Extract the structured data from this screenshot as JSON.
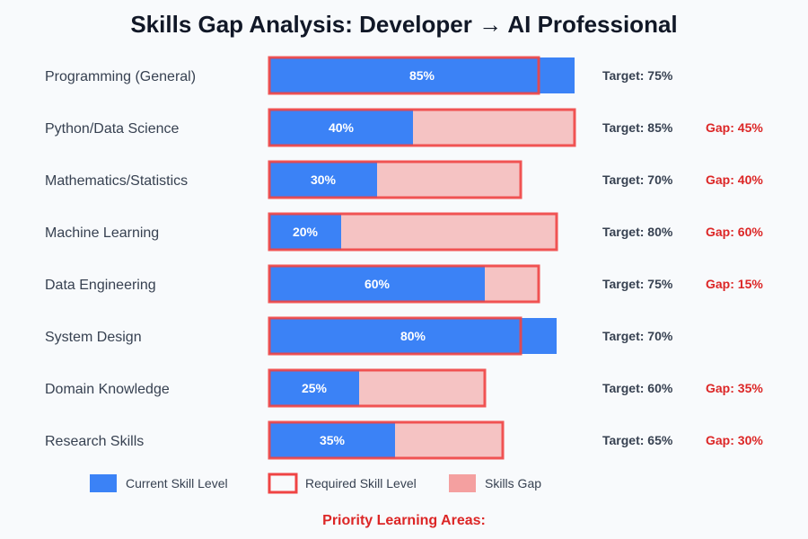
{
  "chart_data": {
    "type": "bar",
    "title": "Skills Gap Analysis: Developer → AI Professional",
    "categories": [
      "Programming (General)",
      "Python/Data Science",
      "Mathematics/Statistics",
      "Machine Learning",
      "Data Engineering",
      "System Design",
      "Domain Knowledge",
      "Research Skills"
    ],
    "series": [
      {
        "name": "Current Skill Level",
        "values": [
          85,
          40,
          30,
          20,
          60,
          80,
          25,
          35
        ]
      },
      {
        "name": "Required Skill Level",
        "values": [
          75,
          85,
          70,
          80,
          75,
          70,
          60,
          65
        ]
      },
      {
        "name": "Skills Gap",
        "values": [
          0,
          45,
          40,
          60,
          15,
          0,
          35,
          30
        ]
      }
    ],
    "xlim": [
      0,
      100
    ],
    "value_labels": [
      "85%",
      "40%",
      "30%",
      "20%",
      "60%",
      "80%",
      "25%",
      "35%"
    ],
    "target_labels": [
      "Target: 75%",
      "Target: 85%",
      "Target: 70%",
      "Target: 80%",
      "Target: 75%",
      "Target: 70%",
      "Target: 60%",
      "Target: 65%"
    ],
    "gap_labels": [
      "",
      "Gap: 45%",
      "Gap: 40%",
      "Gap: 60%",
      "Gap: 15%",
      "",
      "Gap: 35%",
      "Gap: 30%"
    ],
    "legend": [
      "Current Skill Level",
      "Required Skill Level",
      "Skills Gap"
    ],
    "footer": "Priority Learning Areas:",
    "colors": {
      "current": "#3b82f6",
      "required": "#ef4444",
      "gap": "#f5c3c3",
      "gap_text": "#dc2626"
    }
  }
}
